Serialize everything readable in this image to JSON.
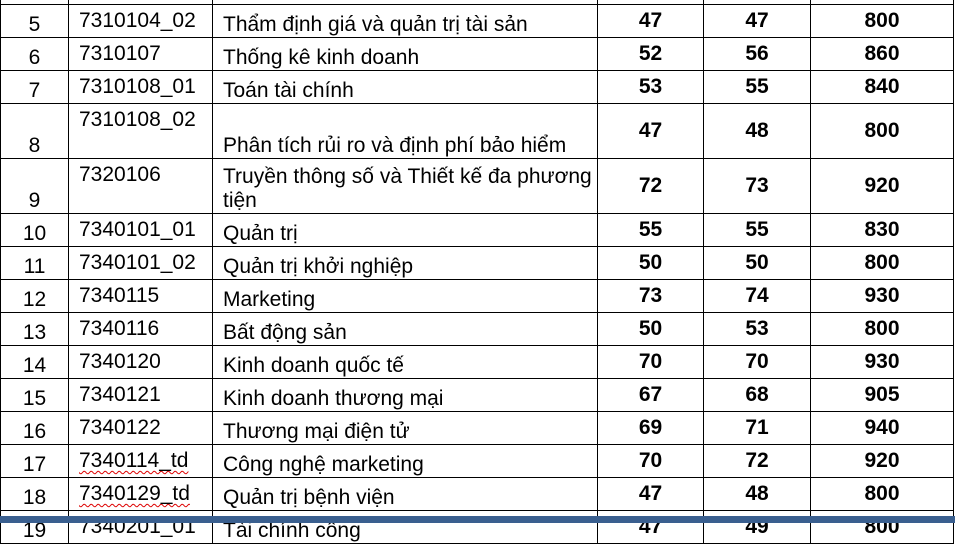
{
  "rows": [
    {
      "stt": "5",
      "code": "7310104_02",
      "name": "Thẩm định giá và quản trị tài sản",
      "a": "47",
      "b": "47",
      "c": "800"
    },
    {
      "stt": "6",
      "code": "7310107",
      "name": "Thống kê kinh doanh",
      "a": "52",
      "b": "56",
      "c": "860"
    },
    {
      "stt": "7",
      "code": "7310108_01",
      "name": "Toán tài chính",
      "a": "53",
      "b": "55",
      "c": "840"
    },
    {
      "stt": "8",
      "code": "7310108_02",
      "name": "Phân tích rủi ro và định phí bảo hiểm",
      "a": "47",
      "b": "48",
      "c": "800"
    },
    {
      "stt": "9",
      "code": "7320106",
      "name": "Truyền thông số và Thiết kế đa phương tiện",
      "a": "72",
      "b": "73",
      "c": "920"
    },
    {
      "stt": "10",
      "code": "7340101_01",
      "name": "Quản trị",
      "a": "55",
      "b": "55",
      "c": "830"
    },
    {
      "stt": "11",
      "code": "7340101_02",
      "name": "Quản trị khởi nghiệp",
      "a": "50",
      "b": "50",
      "c": "800"
    },
    {
      "stt": "12",
      "code": "7340115",
      "name": "Marketing",
      "a": "73",
      "b": "74",
      "c": "930"
    },
    {
      "stt": "13",
      "code": "7340116",
      "name": "Bất động sản",
      "a": "50",
      "b": "53",
      "c": "800"
    },
    {
      "stt": "14",
      "code": "7340120",
      "name": "Kinh doanh quốc tế",
      "a": "70",
      "b": "70",
      "c": "930"
    },
    {
      "stt": "15",
      "code": "7340121",
      "name": "Kinh doanh thương mại",
      "a": "67",
      "b": "68",
      "c": "905"
    },
    {
      "stt": "16",
      "code": "7340122",
      "name": "Thương mại điện tử",
      "a": "69",
      "b": "71",
      "c": "940"
    },
    {
      "stt": "17",
      "code": "7340114_td",
      "name": "Công nghệ marketing",
      "a": "70",
      "b": "72",
      "c": "920"
    },
    {
      "stt": "18",
      "code": "7340129_td",
      "name": "Quản trị bệnh viện",
      "a": "47",
      "b": "48",
      "c": "800"
    },
    {
      "stt": "19",
      "code": "7340201_01",
      "name": "Tài chính công",
      "a": "47",
      "b": "49",
      "c": "800"
    }
  ]
}
